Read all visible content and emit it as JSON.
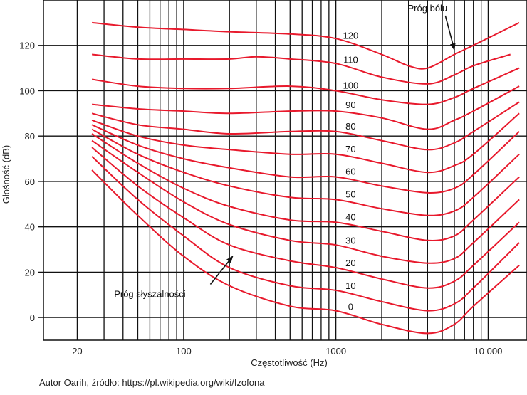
{
  "chart_data": {
    "type": "line",
    "title": "",
    "xlabel": "Częstotliwość (Hz)",
    "ylabel": "Głośność (dB)",
    "x_scale": "log",
    "xlim": [
      12,
      18000
    ],
    "ylim": [
      -10,
      140
    ],
    "x_ticks": [
      {
        "value": 20,
        "label": "20"
      },
      {
        "value": 100,
        "label": "100"
      },
      {
        "value": 1000,
        "label": "1000"
      },
      {
        "value": 10000,
        "label": "10 000"
      }
    ],
    "y_ticks": [
      {
        "value": 0,
        "label": "0"
      },
      {
        "value": 20,
        "label": "20"
      },
      {
        "value": 40,
        "label": "40"
      },
      {
        "value": 60,
        "label": "60"
      },
      {
        "value": 80,
        "label": "80"
      },
      {
        "value": 100,
        "label": "100"
      },
      {
        "value": 120,
        "label": "120"
      }
    ],
    "grid": true,
    "grid_vertical_x": [
      20,
      30,
      40,
      50,
      60,
      70,
      80,
      90,
      100,
      200,
      300,
      400,
      500,
      600,
      700,
      800,
      900,
      1000,
      2000,
      3000,
      4000,
      5000,
      6000,
      7000,
      8000,
      9000,
      10000
    ],
    "grid_horizontal_y": [
      0,
      20,
      40,
      60,
      80,
      100,
      120
    ],
    "line_color": "#e8192c",
    "series": [
      {
        "name": "0",
        "points": [
          [
            25,
            65
          ],
          [
            50,
            45
          ],
          [
            100,
            27
          ],
          [
            200,
            14
          ],
          [
            500,
            5
          ],
          [
            1000,
            3
          ],
          [
            2000,
            -3
          ],
          [
            4000,
            -7
          ],
          [
            6000,
            -3
          ],
          [
            8000,
            5
          ],
          [
            16000,
            23
          ]
        ]
      },
      {
        "name": "10",
        "points": [
          [
            25,
            71
          ],
          [
            50,
            52
          ],
          [
            100,
            36
          ],
          [
            200,
            22
          ],
          [
            500,
            14
          ],
          [
            1000,
            12
          ],
          [
            2000,
            7
          ],
          [
            4000,
            3
          ],
          [
            6000,
            6
          ],
          [
            8000,
            13
          ],
          [
            16000,
            33
          ]
        ]
      },
      {
        "name": "20",
        "points": [
          [
            25,
            75
          ],
          [
            50,
            58
          ],
          [
            100,
            44
          ],
          [
            200,
            32
          ],
          [
            500,
            25
          ],
          [
            1000,
            22
          ],
          [
            2000,
            17
          ],
          [
            4000,
            13
          ],
          [
            6000,
            16
          ],
          [
            8000,
            23
          ],
          [
            16000,
            42
          ]
        ]
      },
      {
        "name": "30",
        "points": [
          [
            25,
            78
          ],
          [
            50,
            64
          ],
          [
            100,
            51
          ],
          [
            200,
            41
          ],
          [
            500,
            34
          ],
          [
            1000,
            32
          ],
          [
            2000,
            27
          ],
          [
            4000,
            24
          ],
          [
            6000,
            26
          ],
          [
            8000,
            33
          ],
          [
            16000,
            52
          ]
        ]
      },
      {
        "name": "40",
        "points": [
          [
            25,
            81
          ],
          [
            50,
            68
          ],
          [
            100,
            57
          ],
          [
            200,
            49
          ],
          [
            500,
            43
          ],
          [
            1000,
            42
          ],
          [
            2000,
            38
          ],
          [
            4000,
            34
          ],
          [
            6000,
            36
          ],
          [
            8000,
            43
          ],
          [
            16000,
            62
          ]
        ]
      },
      {
        "name": "50",
        "points": [
          [
            25,
            83
          ],
          [
            50,
            72
          ],
          [
            100,
            64
          ],
          [
            200,
            58
          ],
          [
            500,
            53
          ],
          [
            1000,
            52
          ],
          [
            2000,
            48
          ],
          [
            4000,
            45
          ],
          [
            6000,
            47
          ],
          [
            8000,
            53
          ],
          [
            16000,
            72
          ]
        ]
      },
      {
        "name": "60",
        "points": [
          [
            25,
            85
          ],
          [
            50,
            76
          ],
          [
            100,
            70
          ],
          [
            200,
            66
          ],
          [
            500,
            62
          ],
          [
            1000,
            62
          ],
          [
            2000,
            58
          ],
          [
            4000,
            55
          ],
          [
            6000,
            57
          ],
          [
            8000,
            63
          ],
          [
            16000,
            82
          ]
        ]
      },
      {
        "name": "70",
        "points": [
          [
            25,
            87
          ],
          [
            50,
            80
          ],
          [
            100,
            76
          ],
          [
            200,
            74
          ],
          [
            500,
            72
          ],
          [
            1000,
            72
          ],
          [
            2000,
            68
          ],
          [
            4000,
            64
          ],
          [
            6000,
            67
          ],
          [
            8000,
            72
          ],
          [
            16000,
            90
          ]
        ]
      },
      {
        "name": "80",
        "points": [
          [
            25,
            90
          ],
          [
            50,
            85
          ],
          [
            100,
            83
          ],
          [
            200,
            81
          ],
          [
            500,
            82
          ],
          [
            1000,
            82
          ],
          [
            2000,
            78
          ],
          [
            4000,
            74
          ],
          [
            6000,
            77
          ],
          [
            8000,
            82
          ],
          [
            16000,
            95
          ]
        ]
      },
      {
        "name": "90",
        "points": [
          [
            25,
            94
          ],
          [
            50,
            92
          ],
          [
            100,
            91
          ],
          [
            200,
            90
          ],
          [
            500,
            91
          ],
          [
            1000,
            91
          ],
          [
            2000,
            88
          ],
          [
            4000,
            83
          ],
          [
            6000,
            87
          ],
          [
            8000,
            91
          ],
          [
            16000,
            102
          ]
        ]
      },
      {
        "name": "100",
        "points": [
          [
            25,
            105
          ],
          [
            50,
            102
          ],
          [
            100,
            101
          ],
          [
            200,
            101
          ],
          [
            500,
            102
          ],
          [
            1000,
            100
          ],
          [
            2000,
            96
          ],
          [
            4000,
            94
          ],
          [
            6000,
            97
          ],
          [
            8000,
            101
          ],
          [
            16000,
            110
          ]
        ]
      },
      {
        "name": "110",
        "points": [
          [
            25,
            116
          ],
          [
            50,
            114
          ],
          [
            100,
            114
          ],
          [
            200,
            114
          ],
          [
            300,
            115
          ],
          [
            500,
            114
          ],
          [
            1000,
            112
          ],
          [
            2000,
            106
          ],
          [
            4000,
            103
          ],
          [
            6000,
            107
          ],
          [
            8000,
            111
          ],
          [
            14000,
            116
          ]
        ]
      },
      {
        "name": "120",
        "points": [
          [
            25,
            130
          ],
          [
            50,
            128
          ],
          [
            100,
            127
          ],
          [
            200,
            126
          ],
          [
            500,
            125
          ],
          [
            1000,
            123
          ],
          [
            2000,
            116
          ],
          [
            3000,
            111
          ],
          [
            4000,
            110
          ],
          [
            6000,
            116
          ],
          [
            8000,
            120
          ],
          [
            16000,
            130
          ]
        ]
      }
    ],
    "annotations": [
      {
        "text": "Próg bólu",
        "x": 4000,
        "y": 135,
        "arrow_to": [
          6000,
          118
        ]
      },
      {
        "text": "Próg słyszalności",
        "x": 60,
        "y": 9,
        "arrow_to": [
          210,
          27
        ]
      }
    ]
  },
  "credit": "Autor Oarih, źródło: https://pl.wikipedia.org/wiki/Izofona"
}
